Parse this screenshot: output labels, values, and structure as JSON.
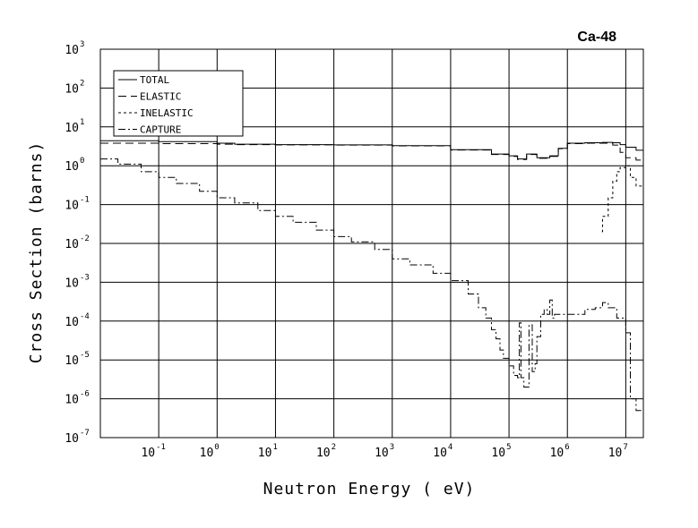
{
  "chart_data": {
    "type": "line",
    "title": "Ca-48",
    "xlabel": "Neutron Energy ( eV)",
    "ylabel": "Cross Section (barns)",
    "xscale": "log",
    "yscale": "log",
    "xlim": [
      0.01,
      20000000
    ],
    "ylim": [
      1e-07,
      1000
    ],
    "grid": true,
    "legend_position": "top-left",
    "x_ticks": [
      {
        "base": "10",
        "exp": "-1",
        "value": 0.1
      },
      {
        "base": "10",
        "exp": "0",
        "value": 1
      },
      {
        "base": "10",
        "exp": "1",
        "value": 10
      },
      {
        "base": "10",
        "exp": "2",
        "value": 100
      },
      {
        "base": "10",
        "exp": "3",
        "value": 1000
      },
      {
        "base": "10",
        "exp": "4",
        "value": 10000
      },
      {
        "base": "10",
        "exp": "5",
        "value": 100000
      },
      {
        "base": "10",
        "exp": "6",
        "value": 1000000
      },
      {
        "base": "10",
        "exp": "7",
        "value": 10000000
      }
    ],
    "y_ticks": [
      {
        "base": "10",
        "exp": "3",
        "value": 1000
      },
      {
        "base": "10",
        "exp": "2",
        "value": 100
      },
      {
        "base": "10",
        "exp": "1",
        "value": 10
      },
      {
        "base": "10",
        "exp": "0",
        "value": 1
      },
      {
        "base": "10",
        "exp": "-1",
        "value": 0.1
      },
      {
        "base": "10",
        "exp": "-2",
        "value": 0.01
      },
      {
        "base": "10",
        "exp": "-3",
        "value": 0.001
      },
      {
        "base": "10",
        "exp": "-4",
        "value": 0.0001
      },
      {
        "base": "10",
        "exp": "-5",
        "value": 1e-05
      },
      {
        "base": "10",
        "exp": "-6",
        "value": 1e-06
      },
      {
        "base": "10",
        "exp": "-7",
        "value": 1e-07
      }
    ],
    "series": [
      {
        "name": "TOTAL",
        "dash": "solid",
        "x": [
          0.01,
          0.1,
          1,
          2,
          10,
          100,
          1000,
          10000,
          50000,
          100000,
          140000,
          200000,
          300000,
          500000,
          700000,
          1000000,
          2000000,
          4000000,
          6000000,
          8000000,
          10000000,
          15000000,
          20000000
        ],
        "y": [
          4.4,
          4.2,
          3.8,
          3.6,
          3.5,
          3.45,
          3.3,
          2.6,
          2.0,
          1.8,
          1.5,
          2.0,
          1.6,
          1.8,
          2.8,
          3.8,
          3.9,
          4.0,
          3.9,
          3.5,
          3.0,
          2.5,
          2.0
        ]
      },
      {
        "name": "ELASTIC",
        "dash": "long",
        "x": [
          0.01,
          0.1,
          1,
          2,
          10,
          100,
          1000,
          10000,
          50000,
          100000,
          140000,
          200000,
          300000,
          500000,
          700000,
          1000000,
          2000000,
          4000000,
          6000000,
          8000000,
          10000000,
          15000000,
          20000000
        ],
        "y": [
          3.8,
          3.7,
          3.6,
          3.5,
          3.45,
          3.4,
          3.25,
          2.55,
          1.95,
          1.75,
          1.45,
          1.95,
          1.55,
          1.75,
          2.75,
          3.7,
          3.8,
          3.8,
          3.4,
          2.2,
          1.6,
          1.4,
          1.3
        ]
      },
      {
        "name": "INELASTIC",
        "dash": "short",
        "x": [
          3900000,
          4000000,
          5000000,
          6000000,
          7000000,
          8000000,
          10000000,
          12000000,
          15000000,
          20000000
        ],
        "y": [
          0.02,
          0.05,
          0.15,
          0.4,
          0.7,
          0.9,
          1.0,
          0.5,
          0.3,
          0.35
        ]
      },
      {
        "name": "CAPTURE",
        "dash": "dashdot",
        "x": [
          0.01,
          0.02,
          0.05,
          0.1,
          0.2,
          0.5,
          1,
          2,
          5,
          10,
          20,
          50,
          100,
          200,
          500,
          1000,
          2000,
          5000,
          10000,
          20000,
          30000,
          40000,
          50000,
          60000,
          70000,
          80000,
          100000,
          120000,
          140000,
          150000,
          160000,
          180000,
          200000,
          220000,
          250000,
          280000,
          300000,
          350000,
          400000,
          450000,
          500000,
          550000,
          600000,
          1000000,
          2000000,
          3000000,
          4000000,
          5000000,
          7000000,
          10000000,
          12000000,
          15000000,
          20000000
        ],
        "y": [
          1.5,
          1.1,
          0.7,
          0.5,
          0.35,
          0.22,
          0.15,
          0.11,
          0.07,
          0.05,
          0.035,
          0.022,
          0.015,
          0.011,
          0.007,
          0.004,
          0.0028,
          0.0017,
          0.0011,
          0.0005,
          0.00022,
          0.00012,
          6e-05,
          3.5e-05,
          1.8e-05,
          1.1e-05,
          7e-06,
          4e-06,
          3.5e-06,
          9e-05,
          3.5e-06,
          2e-06,
          2e-06,
          8e-05,
          5e-06,
          8e-06,
          4e-05,
          0.00015,
          0.0002,
          0.00015,
          0.00035,
          0.00012,
          0.00015,
          0.00015,
          0.0002,
          0.00022,
          0.0003,
          0.00022,
          0.00012,
          5e-05,
          1e-06,
          5e-07,
          2e-07
        ]
      }
    ]
  }
}
